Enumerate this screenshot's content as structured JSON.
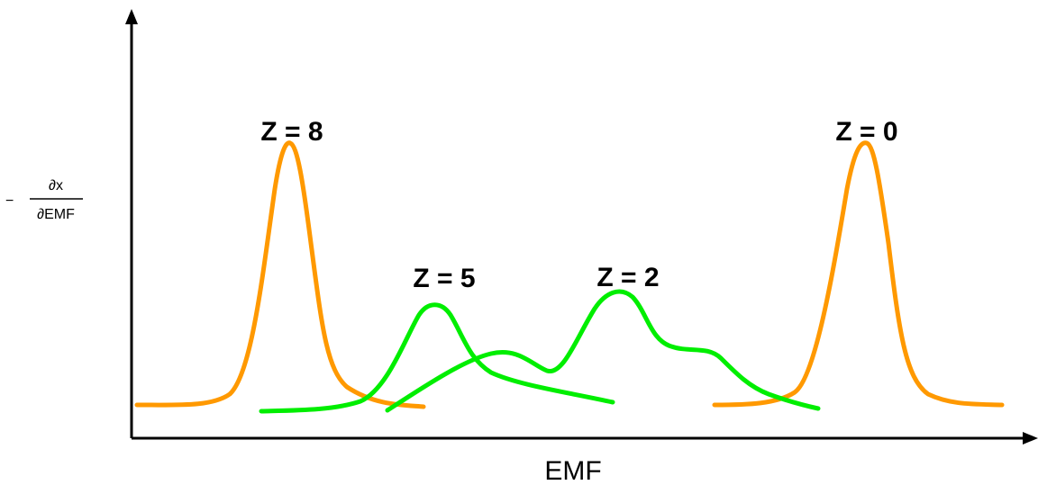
{
  "x_axis_label": "EMF",
  "y_axis_label": {
    "prefix": "−",
    "numerator": "∂x",
    "denominator": "∂EMF"
  },
  "peak_labels": {
    "z8": "Z = 8",
    "z5": "Z = 5",
    "z2": "Z = 2",
    "z0": "Z = 0"
  },
  "colors": {
    "orange_curve": "#FF9900",
    "green_curve": "#00EE00",
    "axis": "#000000"
  }
}
